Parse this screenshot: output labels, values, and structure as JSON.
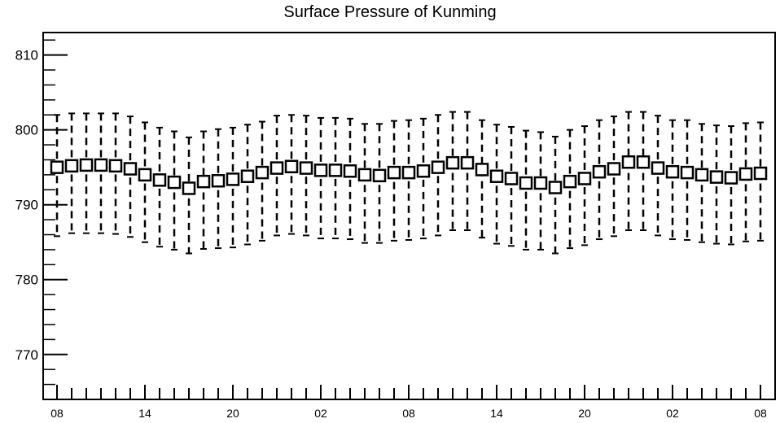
{
  "chart_data": {
    "type": "box",
    "title": "Surface Pressure of Kunming",
    "xlabel": "",
    "ylabel": "",
    "ylim": [
      764,
      813
    ],
    "y_ticks": [
      770,
      780,
      790,
      800,
      810
    ],
    "x_tick_labels": [
      "08",
      "14",
      "20",
      "02",
      "08",
      "14",
      "20",
      "02",
      "08"
    ],
    "x_tick_index": [
      0,
      6,
      12,
      18,
      24,
      30,
      36,
      42,
      48
    ],
    "median": [
      795.0,
      795.2,
      795.3,
      795.3,
      795.2,
      794.8,
      794.0,
      793.3,
      793.0,
      792.2,
      793.1,
      793.2,
      793.4,
      793.8,
      794.3,
      794.9,
      795.1,
      794.9,
      794.6,
      794.6,
      794.5,
      794.0,
      793.9,
      794.3,
      794.3,
      794.5,
      795.0,
      795.6,
      795.6,
      794.7,
      793.8,
      793.5,
      792.9,
      792.9,
      792.3,
      793.1,
      793.5,
      794.4,
      794.8,
      795.7,
      795.7,
      794.9,
      794.4,
      794.3,
      794.0,
      793.7,
      793.6,
      794.1,
      794.2
    ],
    "whisker_low": [
      785.8,
      786.2,
      786.2,
      786.2,
      786.1,
      785.7,
      785.0,
      784.4,
      784.0,
      783.5,
      784.1,
      784.2,
      784.3,
      784.7,
      785.2,
      785.9,
      786.1,
      785.9,
      785.5,
      785.5,
      785.4,
      784.9,
      784.9,
      785.2,
      785.3,
      785.5,
      785.9,
      786.6,
      786.6,
      785.6,
      784.8,
      784.5,
      784.0,
      784.0,
      783.5,
      784.2,
      784.6,
      785.4,
      785.8,
      786.6,
      786.6,
      785.9,
      785.4,
      785.3,
      785.0,
      784.8,
      784.7,
      785.1,
      785.2
    ],
    "whisker_high": [
      802.0,
      802.2,
      802.2,
      802.2,
      802.2,
      801.8,
      801.0,
      800.3,
      799.8,
      799.0,
      799.8,
      800.1,
      800.3,
      800.7,
      801.1,
      801.9,
      802.0,
      801.9,
      801.6,
      801.6,
      801.5,
      800.8,
      800.8,
      801.2,
      801.3,
      801.5,
      802.0,
      802.4,
      802.4,
      801.3,
      800.7,
      800.4,
      799.9,
      799.7,
      799.1,
      800.0,
      800.5,
      801.3,
      801.8,
      802.4,
      802.4,
      801.9,
      801.3,
      801.3,
      800.8,
      800.6,
      800.5,
      800.9,
      801.0
    ]
  }
}
